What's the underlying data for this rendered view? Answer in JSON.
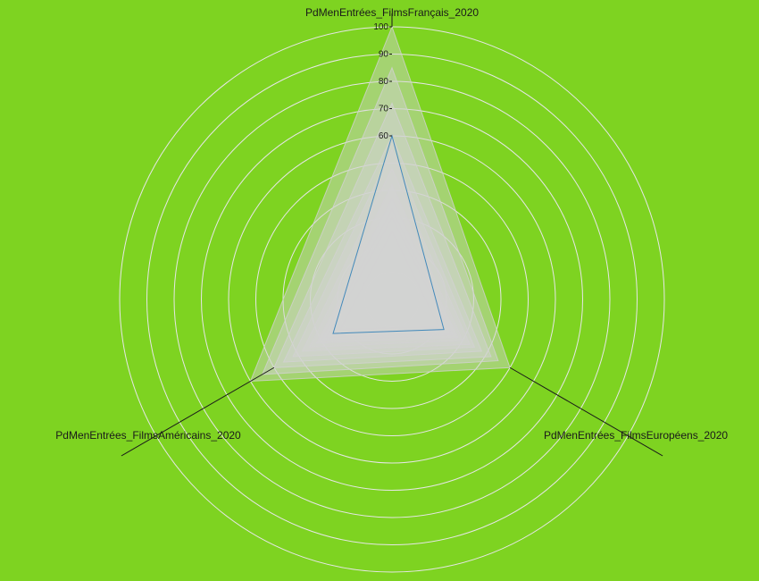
{
  "colors": {
    "background": "#7ED321",
    "grid": "#e6e6e6",
    "axis": "#1a1a1a",
    "fill": "#d2d2d2",
    "accent_series": "#1f77b4"
  },
  "chart_data": {
    "type": "radar",
    "axes": [
      "PdMenEntrées_FilmsFrançais_2020",
      "PdMenEntrées_FilmsEuropéens_2020",
      "PdMenEntrées_FilmsAméricains_2020"
    ],
    "radial_ticks": [
      10,
      20,
      30,
      40,
      50,
      60,
      70,
      80,
      90,
      100
    ],
    "radial_tick_labels": [
      "60",
      "70",
      "80",
      "90",
      "100"
    ],
    "rlim": [
      0,
      100
    ],
    "grid": true,
    "series": [
      {
        "values": [
          100,
          50,
          60
        ]
      },
      {
        "values": [
          85,
          45,
          55
        ]
      },
      {
        "values": [
          72,
          42,
          50
        ]
      },
      {
        "values": [
          60,
          38,
          46
        ]
      },
      {
        "values": [
          55,
          35,
          42
        ]
      },
      {
        "values": [
          48,
          33,
          38
        ]
      },
      {
        "values": [
          42,
          30,
          35
        ]
      },
      {
        "values": [
          37,
          28,
          32
        ]
      },
      {
        "values": [
          33,
          26,
          30
        ]
      },
      {
        "values": [
          30,
          25,
          28
        ]
      },
      {
        "values": [
          60,
          22,
          25
        ]
      },
      {
        "values": [
          25,
          20,
          22
        ]
      }
    ]
  }
}
